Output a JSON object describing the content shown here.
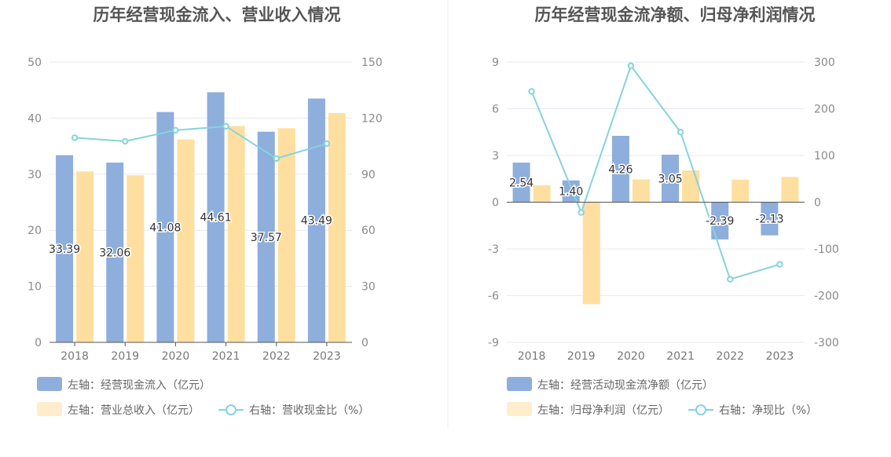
{
  "chart_data": [
    {
      "type": "bar",
      "title": "历年经营现金流入、营业收入情况",
      "categories": [
        "2018",
        "2019",
        "2020",
        "2021",
        "2022",
        "2023"
      ],
      "y_left": {
        "ticks": [
          "0",
          "10",
          "20",
          "30",
          "40",
          "50"
        ],
        "ylim": [
          0,
          50
        ]
      },
      "y_right": {
        "ticks": [
          "0",
          "30",
          "60",
          "90",
          "120",
          "150"
        ],
        "ylim": [
          0,
          150
        ]
      },
      "grid": true,
      "legend_position": "bottom-left",
      "series": [
        {
          "name": "左轴：经营现金流入（亿元）",
          "type": "bar",
          "axis": "left",
          "color": "#8eaedc",
          "values": [
            33.39,
            32.06,
            41.08,
            44.61,
            37.57,
            43.49
          ],
          "labels": [
            "33.39",
            "32.06",
            "41.08",
            "44.61",
            "37.57",
            "43.49"
          ]
        },
        {
          "name": "左轴：营业总收入（亿元）",
          "type": "bar",
          "axis": "left",
          "color": "#ffdfa0",
          "values": [
            30.5,
            29.8,
            36.2,
            38.6,
            38.2,
            40.9
          ]
        },
        {
          "name": "右轴：营收现金比（%）",
          "type": "line",
          "axis": "right",
          "color": "#86d3dc",
          "values": [
            109.5,
            107.6,
            113.5,
            115.6,
            98.4,
            106.3
          ]
        }
      ]
    },
    {
      "type": "bar",
      "title": "历年经营现金流净额、归母净利润情况",
      "categories": [
        "2018",
        "2019",
        "2020",
        "2021",
        "2022",
        "2023"
      ],
      "y_left": {
        "ticks": [
          "-9",
          "-6",
          "-3",
          "0",
          "3",
          "6",
          "9"
        ],
        "ylim": [
          -9,
          9
        ]
      },
      "y_right": {
        "ticks": [
          "-300",
          "-200",
          "-100",
          "0",
          "100",
          "200",
          "300"
        ],
        "ylim": [
          -300,
          300
        ]
      },
      "grid": true,
      "legend_position": "bottom-left",
      "series": [
        {
          "name": "左轴：经营活动现金流净额（亿元）",
          "type": "bar",
          "axis": "left",
          "color": "#8eaedc",
          "values": [
            2.54,
            1.4,
            4.26,
            3.05,
            -2.39,
            -2.13
          ],
          "labels": [
            "2.54",
            "1.40",
            "4.26",
            "3.05",
            "-2.39",
            "-2.13"
          ]
        },
        {
          "name": "左轴：归母净利润（亿元）",
          "type": "bar",
          "axis": "left",
          "color": "#ffdfa0",
          "values": [
            1.08,
            -6.55,
            1.46,
            2.04,
            1.45,
            1.62
          ]
        },
        {
          "name": "右轴：净现比（%）",
          "type": "line",
          "axis": "right",
          "color": "#86d3dc",
          "values": [
            237,
            -22,
            292,
            150,
            -165,
            -133
          ]
        }
      ]
    }
  ]
}
